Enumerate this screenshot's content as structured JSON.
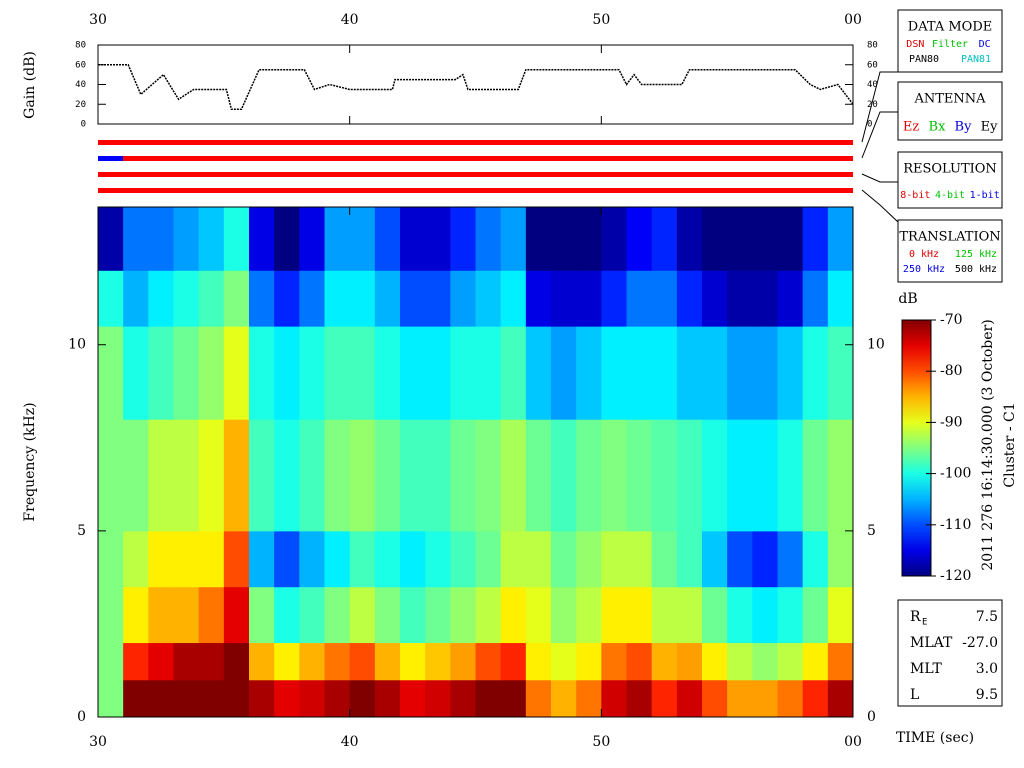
{
  "chart_data": [
    {
      "type": "line",
      "ylabel": "Gain (dB)",
      "x": [
        30,
        31.2,
        31.7,
        32.6,
        33.2,
        33.8,
        35.1,
        35.3,
        35.7,
        36.4,
        38.2,
        38.6,
        39.2,
        40,
        41.7,
        41.8,
        44.2,
        44.5,
        44.7,
        46.7,
        47,
        50.7,
        51,
        51.3,
        51.6,
        53.2,
        53.5,
        57.7,
        58.3,
        58.7,
        59.4,
        60
      ],
      "series": [
        {
          "color": "#000000",
          "values": [
            60,
            60,
            30,
            50,
            25,
            35,
            35,
            15,
            15,
            55,
            55,
            35,
            40,
            35,
            35,
            45,
            45,
            50,
            35,
            35,
            55,
            55,
            40,
            50,
            40,
            40,
            55,
            55,
            40,
            35,
            40,
            20
          ]
        }
      ],
      "xlim": [
        30,
        60
      ],
      "xticks": [
        30,
        40,
        50,
        {
          "value": 60,
          "label": "00"
        }
      ],
      "ylim": [
        0,
        80
      ],
      "yticks": [
        0,
        20,
        40,
        60,
        80
      ]
    },
    {
      "type": "heatmap",
      "xlabel": "TIME (sec)",
      "ylabel": "Frequency (kHz)",
      "x": [
        30,
        31,
        32,
        33,
        34,
        35,
        36,
        37,
        38,
        39,
        40,
        41,
        42,
        43,
        44,
        45,
        46,
        47,
        48,
        49,
        50,
        51,
        52,
        53,
        54,
        55,
        56,
        57,
        58,
        59,
        60
      ],
      "y": [
        0,
        1,
        2,
        3.5,
        5,
        8,
        10.5,
        12,
        13.7
      ],
      "values": [
        [
          -95,
          -70,
          -70,
          -70,
          -70,
          -70,
          -72,
          -75,
          -74,
          -72,
          -70,
          -72,
          -75,
          -74,
          -72,
          -70,
          -70,
          -82,
          -85,
          -82,
          -74,
          -72,
          -78,
          -74,
          -80,
          -84,
          -84,
          -82,
          -78,
          -72
        ],
        [
          -95,
          -78,
          -75,
          -72,
          -72,
          -70,
          -85,
          -88,
          -85,
          -82,
          -80,
          -85,
          -88,
          -86,
          -84,
          -80,
          -78,
          -88,
          -90,
          -88,
          -82,
          -80,
          -85,
          -84,
          -88,
          -92,
          -94,
          -92,
          -88,
          -82
        ],
        [
          -95,
          -88,
          -85,
          -85,
          -82,
          -75,
          -95,
          -100,
          -98,
          -95,
          -92,
          -95,
          -98,
          -96,
          -94,
          -92,
          -88,
          -90,
          -94,
          -92,
          -88,
          -88,
          -92,
          -92,
          -96,
          -100,
          -102,
          -100,
          -96,
          -90
        ],
        [
          -95,
          -92,
          -88,
          -88,
          -88,
          -80,
          -105,
          -110,
          -105,
          -102,
          -98,
          -100,
          -102,
          -100,
          -98,
          -96,
          -92,
          -92,
          -96,
          -94,
          -92,
          -92,
          -96,
          -98,
          -104,
          -110,
          -112,
          -108,
          -100,
          -94
        ],
        [
          -95,
          -95,
          -92,
          -92,
          -90,
          -85,
          -98,
          -100,
          -98,
          -95,
          -94,
          -96,
          -98,
          -98,
          -96,
          -95,
          -93,
          -96,
          -98,
          -96,
          -95,
          -96,
          -97,
          -98,
          -100,
          -102,
          -102,
          -100,
          -96,
          -94
        ],
        [
          -95,
          -100,
          -98,
          -96,
          -94,
          -90,
          -100,
          -102,
          -100,
          -98,
          -98,
          -100,
          -102,
          -102,
          -100,
          -100,
          -98,
          -104,
          -106,
          -104,
          -102,
          -102,
          -102,
          -104,
          -104,
          -106,
          -106,
          -104,
          -100,
          -98
        ],
        [
          -100,
          -105,
          -102,
          -100,
          -98,
          -95,
          -108,
          -112,
          -108,
          -102,
          -102,
          -105,
          -110,
          -110,
          -106,
          -104,
          -102,
          -115,
          -116,
          -116,
          -112,
          -108,
          -108,
          -112,
          -116,
          -118,
          -118,
          -116,
          -108,
          -102
        ],
        [
          -118,
          -108,
          -108,
          -106,
          -104,
          -100,
          -115,
          -120,
          -115,
          -106,
          -106,
          -110,
          -116,
          -116,
          -112,
          -108,
          -106,
          -120,
          -120,
          -120,
          -118,
          -114,
          -112,
          -118,
          -120,
          -120,
          -120,
          -120,
          -112,
          -106
        ]
      ],
      "xlim": [
        30,
        60
      ],
      "xticks": [
        30,
        40,
        50,
        {
          "value": 60,
          "label": "00"
        }
      ],
      "ylim": [
        0,
        13.7
      ],
      "yticks": [
        0,
        5,
        10
      ],
      "colorbar": {
        "label": "dB",
        "lim": [
          -120,
          -70
        ],
        "ticks": [
          -70,
          -80,
          -90,
          -100,
          -110,
          -120
        ]
      }
    }
  ],
  "caption": {
    "date": "2011 276 16:14:30.000 (3 October)",
    "source": "Cluster - C1"
  },
  "panels": [
    {
      "title": "DATA MODE",
      "rows": [
        [
          {
            "text": "DSN",
            "color": "#e00000"
          },
          {
            "text": "Filter",
            "color": "#00c000"
          },
          {
            "text": "DC",
            "color": "#0000e0"
          }
        ],
        [
          {
            "text": "PAN80",
            "color": "#000000"
          },
          {
            "text": "PAN81",
            "color": "#00c0c0"
          }
        ]
      ]
    },
    {
      "title": "ANTENNA",
      "rows": [
        [
          {
            "text": "Ez",
            "color": "#e00000"
          },
          {
            "text": "Bx",
            "color": "#00c000"
          },
          {
            "text": "By",
            "color": "#0000e0"
          },
          {
            "text": "Ey",
            "color": "#000000"
          }
        ]
      ]
    },
    {
      "title": "RESOLUTION",
      "rows": [
        [
          {
            "text": "8-bit",
            "color": "#e00000"
          },
          {
            "text": "4-bit",
            "color": "#00c000"
          },
          {
            "text": "1-bit",
            "color": "#0000e0"
          }
        ]
      ]
    },
    {
      "title": "TRANSLATION",
      "rows": [
        [
          {
            "text": "0 kHz",
            "color": "#e00000"
          },
          {
            "text": "125 kHz",
            "color": "#00c000"
          }
        ],
        [
          {
            "text": "250 kHz",
            "color": "#0000e0"
          },
          {
            "text": "500 kHz",
            "color": "#000000"
          }
        ]
      ]
    }
  ],
  "orbit": {
    "rows": [
      {
        "label": "R",
        "sub": "E",
        "value": "7.5"
      },
      {
        "label": "MLAT",
        "value": "-27.0"
      },
      {
        "label": "MLT",
        "value": "3.0"
      },
      {
        "label": "L",
        "value": "9.5"
      }
    ]
  }
}
